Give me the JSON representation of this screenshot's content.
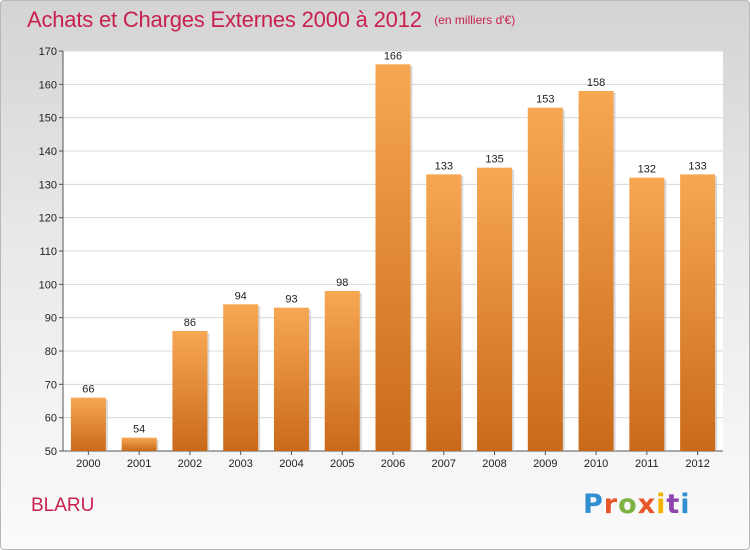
{
  "header": {
    "title": "Achats et Charges Externes 2000 à 2012",
    "subtitle": "(en milliers d'€)"
  },
  "footer": {
    "place": "BLARU",
    "brand": "Proxiti",
    "brand_colors": [
      "#2f8fd0",
      "#e8572a",
      "#7cb342",
      "#e8572a",
      "#f4b400",
      "#8e44ad",
      "#2f8fd0"
    ]
  },
  "colors": {
    "title": "#c8204f",
    "bar_top": "#f7a752",
    "bar_bottom": "#c96a1a"
  },
  "chart_data": {
    "type": "bar",
    "categories": [
      "2000",
      "2001",
      "2002",
      "2003",
      "2004",
      "2005",
      "2006",
      "2007",
      "2008",
      "2009",
      "2010",
      "2011",
      "2012"
    ],
    "values": [
      66,
      54,
      86,
      94,
      93,
      98,
      166,
      133,
      135,
      153,
      158,
      132,
      133
    ],
    "ylim": [
      50,
      170
    ],
    "yticks": [
      50,
      60,
      70,
      80,
      90,
      100,
      110,
      120,
      130,
      140,
      150,
      160,
      170
    ],
    "grid": true,
    "legend": "none"
  }
}
